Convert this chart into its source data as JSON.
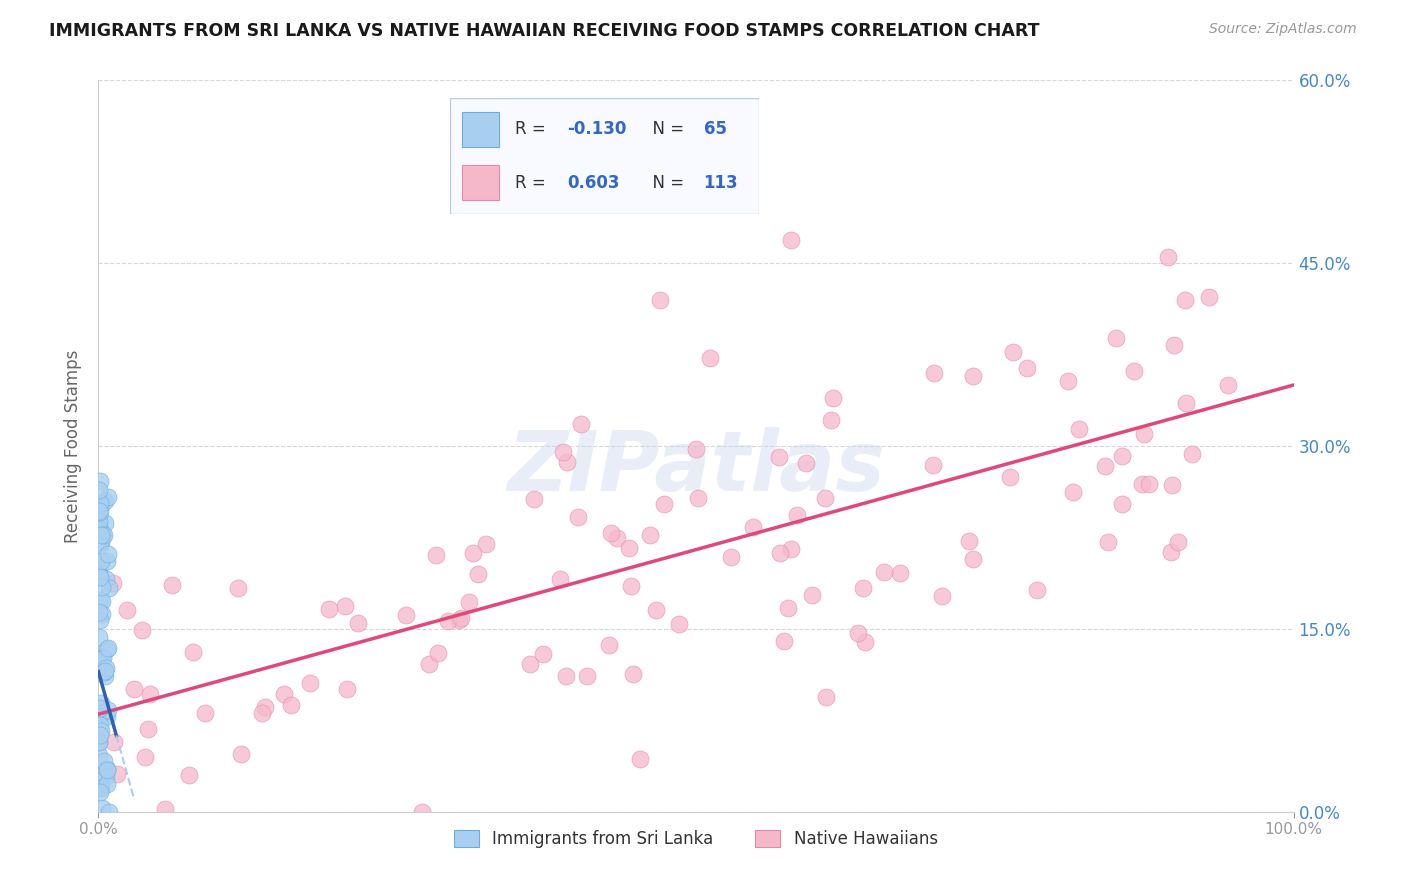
{
  "title": "IMMIGRANTS FROM SRI LANKA VS NATIVE HAWAIIAN RECEIVING FOOD STAMPS CORRELATION CHART",
  "source": "Source: ZipAtlas.com",
  "ylabel": "Receiving Food Stamps",
  "xlim": [
    0.0,
    1.0
  ],
  "ylim": [
    0.0,
    0.6
  ],
  "yticks": [
    0.0,
    0.15,
    0.3,
    0.45,
    0.6
  ],
  "ytick_labels": [
    "0.0%",
    "15.0%",
    "30.0%",
    "45.0%",
    "60.0%"
  ],
  "sri_lanka_R": -0.13,
  "sri_lanka_N": 65,
  "native_hawaiian_R": 0.603,
  "native_hawaiian_N": 113,
  "sri_lanka_color": "#a8cff0",
  "sri_lanka_edge": "#6aaee0",
  "native_hawaiian_color": "#f5b8cb",
  "native_hawaiian_edge": "#e888a8",
  "sri_lanka_line_color": "#3060b0",
  "sri_lanka_line_dash_color": "#aaccee",
  "native_hawaiian_line_color": "#e04878",
  "background_color": "#ffffff",
  "grid_color": "#cccccc",
  "axis_tick_color": "#4488cc",
  "watermark_color": "#ccd8ee",
  "watermark_alpha": 0.45,
  "legend_text_color": "#3366cc",
  "legend_bg": "#f8faff",
  "legend_edge": "#bbccdd",
  "note_line_intercept": 0.08,
  "note_line_slope": 0.27,
  "note_sl_line_intercept": 0.115,
  "note_sl_line_slope": -3.5
}
